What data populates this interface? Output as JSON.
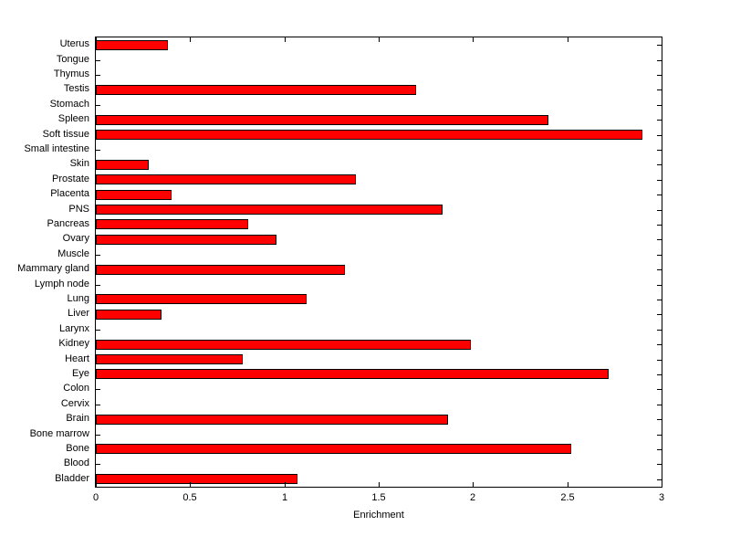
{
  "chart_data": {
    "type": "bar",
    "orientation": "horizontal",
    "title": "",
    "xlabel": "Enrichment",
    "ylabel": "",
    "xlim": [
      0,
      3
    ],
    "xticks": [
      0,
      0.5,
      1,
      1.5,
      2,
      2.5,
      3
    ],
    "xtick_labels": [
      "0",
      "0.5",
      "1",
      "1.5",
      "2",
      "2.5",
      "3"
    ],
    "grid": false,
    "legend": null,
    "bar_color": "#ff0000",
    "bar_edge_color": "#000000",
    "categories": [
      "Uterus",
      "Tongue",
      "Thymus",
      "Testis",
      "Stomach",
      "Spleen",
      "Soft tissue",
      "Small intestine",
      "Skin",
      "Prostate",
      "Placenta",
      "PNS",
      "Pancreas",
      "Ovary",
      "Muscle",
      "Mammary gland",
      "Lymph node",
      "Lung",
      "Liver",
      "Larynx",
      "Kidney",
      "Heart",
      "Eye",
      "Colon",
      "Cervix",
      "Brain",
      "Bone marrow",
      "Bone",
      "Blood",
      "Bladder"
    ],
    "values": [
      0.38,
      0,
      0,
      1.7,
      0,
      2.4,
      2.9,
      0,
      0.28,
      1.38,
      0.4,
      1.84,
      0.81,
      0.96,
      0,
      1.32,
      0,
      1.12,
      0.35,
      0,
      1.99,
      0.78,
      2.72,
      0,
      0,
      1.87,
      0,
      2.52,
      0,
      1.07
    ]
  }
}
